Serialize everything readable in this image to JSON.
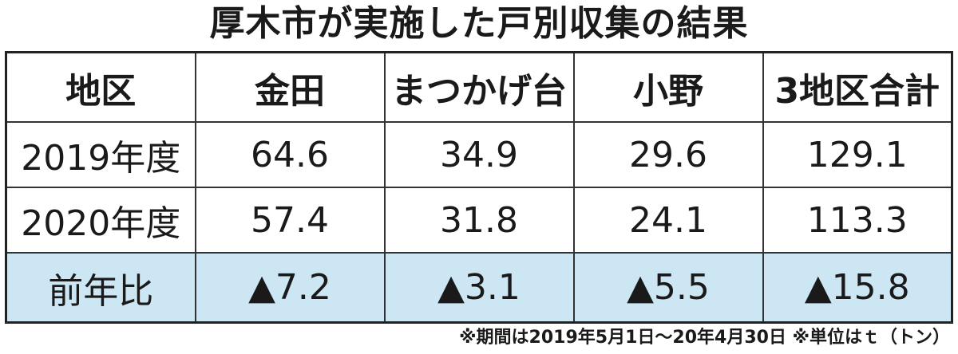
{
  "chart_data": {
    "type": "table",
    "title": "厚木市が実施した戸別収集の結果",
    "columns": [
      "地区",
      "金田",
      "まつかげ台",
      "小野",
      "3地区合計"
    ],
    "rows": [
      {
        "label": "2019年度",
        "values": [
          "64.6",
          "34.9",
          "29.6",
          "129.1"
        ]
      },
      {
        "label": "2020年度",
        "values": [
          "57.4",
          "31.8",
          "24.1",
          "113.3"
        ]
      },
      {
        "label": "前年比",
        "values": [
          "▲7.2",
          "▲3.1",
          "▲5.5",
          "▲15.8"
        ]
      }
    ],
    "note": "※期間は2019年5月1日〜20年4月30日 ※単位はｔ（トン）",
    "highlight_color": "#cde6f3"
  }
}
